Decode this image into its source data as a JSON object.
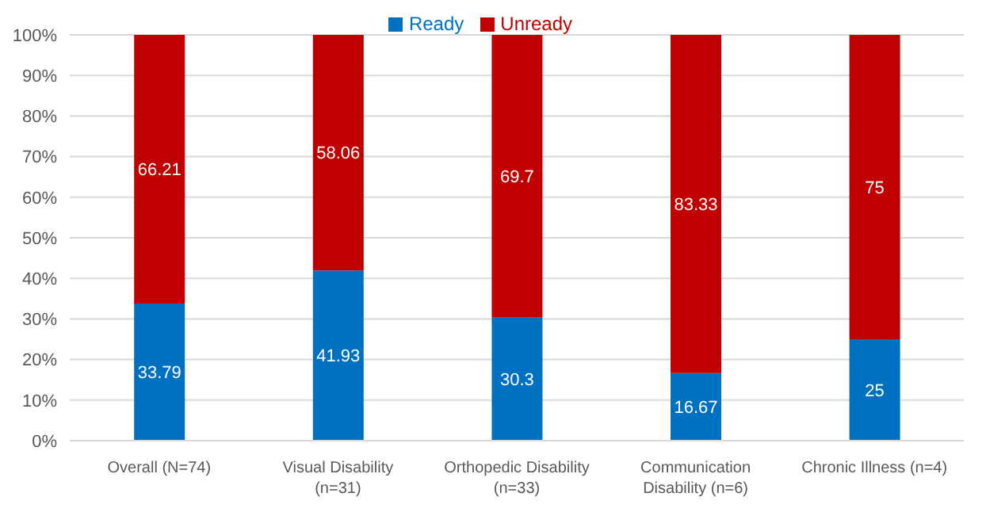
{
  "chart_data": {
    "type": "bar",
    "stacked": true,
    "categories": [
      "Overall (N=74)",
      "Visual Disability (n=31)",
      "Orthopedic Disability (n=33)",
      "Communication Disability (n=6)",
      "Chronic Illness (n=4)"
    ],
    "series": [
      {
        "name": "Ready",
        "color": "#0070c0",
        "values": [
          33.79,
          41.93,
          30.3,
          16.67,
          25
        ]
      },
      {
        "name": "Unready",
        "color": "#c00000",
        "values": [
          66.21,
          58.06,
          69.7,
          83.33,
          75
        ]
      }
    ],
    "ylim": [
      0,
      100
    ],
    "yticks": [
      {
        "value": 0,
        "label": "0%"
      },
      {
        "value": 10,
        "label": "10%"
      },
      {
        "value": 20,
        "label": "20%"
      },
      {
        "value": 30,
        "label": "30%"
      },
      {
        "value": 40,
        "label": "40%"
      },
      {
        "value": 50,
        "label": "50%"
      },
      {
        "value": 60,
        "label": "60%"
      },
      {
        "value": 70,
        "label": "70%"
      },
      {
        "value": 80,
        "label": "80%"
      },
      {
        "value": 90,
        "label": "90%"
      },
      {
        "value": 100,
        "label": "100%"
      }
    ],
    "grid": "y",
    "legend": "top",
    "data_labels": true
  }
}
